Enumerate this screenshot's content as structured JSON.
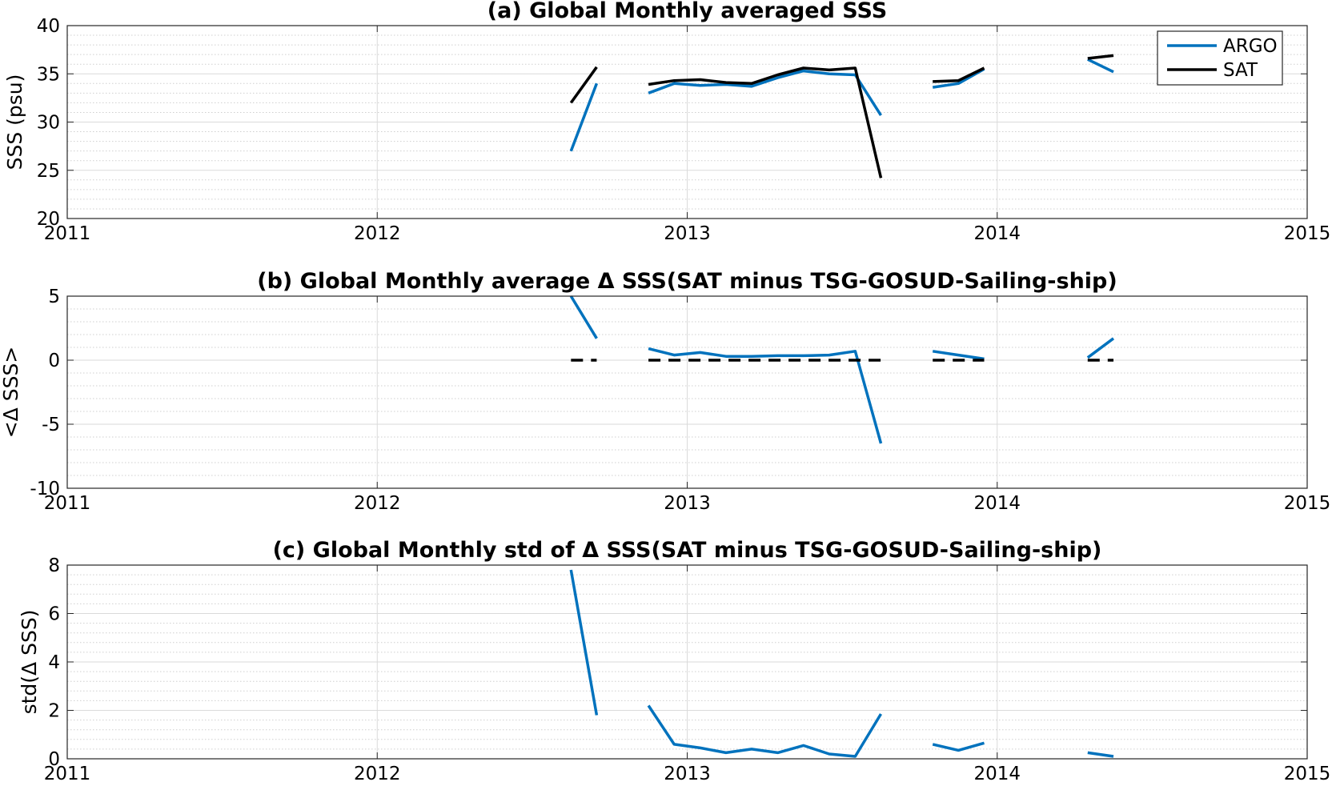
{
  "chart_data": [
    {
      "type": "line",
      "title": "(a) Global Monthly averaged SSS",
      "xlabel": "",
      "ylabel": "SSS (psu)",
      "xlim": [
        2011,
        2015
      ],
      "ylim": [
        20,
        40
      ],
      "xticks": [
        2011,
        2012,
        2013,
        2014,
        2015
      ],
      "xtick_labels": [
        "2011",
        "2012",
        "2013",
        "2014",
        "2015"
      ],
      "yticks": [
        20,
        25,
        30,
        35,
        40
      ],
      "ytick_labels": [
        "20",
        "25",
        "30",
        "35",
        "40"
      ],
      "grid": true,
      "minor_grid": true,
      "legend_position": "top-right",
      "series": [
        {
          "name": "ARGO",
          "color": "#0072BD",
          "dash": "solid",
          "points": [
            [
              2012.625,
              27.0
            ],
            [
              2012.708,
              34.0
            ],
            null,
            [
              2012.875,
              33.0
            ],
            [
              2012.958,
              34.0
            ],
            [
              2013.042,
              33.8
            ],
            [
              2013.125,
              33.9
            ],
            [
              2013.208,
              33.7
            ],
            [
              2013.292,
              34.6
            ],
            [
              2013.375,
              35.3
            ],
            [
              2013.458,
              35.0
            ],
            [
              2013.542,
              34.9
            ],
            [
              2013.625,
              30.7
            ],
            null,
            [
              2013.792,
              33.6
            ],
            [
              2013.875,
              34.0
            ],
            [
              2013.958,
              35.5
            ],
            null,
            [
              2014.292,
              36.5
            ],
            [
              2014.375,
              35.2
            ]
          ]
        },
        {
          "name": "SAT",
          "color": "#000000",
          "dash": "solid",
          "points": [
            [
              2012.625,
              32.0
            ],
            [
              2012.708,
              35.7
            ],
            null,
            [
              2012.875,
              33.9
            ],
            [
              2012.958,
              34.3
            ],
            [
              2013.042,
              34.4
            ],
            [
              2013.125,
              34.1
            ],
            [
              2013.208,
              34.0
            ],
            [
              2013.292,
              34.9
            ],
            [
              2013.375,
              35.6
            ],
            [
              2013.458,
              35.4
            ],
            [
              2013.542,
              35.6
            ],
            [
              2013.625,
              24.2
            ],
            null,
            [
              2013.792,
              34.2
            ],
            [
              2013.875,
              34.3
            ],
            [
              2013.958,
              35.6
            ],
            null,
            [
              2014.292,
              36.6
            ],
            [
              2014.375,
              36.9
            ]
          ]
        }
      ]
    },
    {
      "type": "line",
      "title": "(b) Global Monthly average Δ SSS(SAT minus TSG-GOSUD-Sailing-ship)",
      "xlabel": "",
      "ylabel": "<Δ SSS>",
      "xlim": [
        2011,
        2015
      ],
      "ylim": [
        -10,
        5
      ],
      "xticks": [
        2011,
        2012,
        2013,
        2014,
        2015
      ],
      "xtick_labels": [
        "2011",
        "2012",
        "2013",
        "2014",
        "2015"
      ],
      "yticks": [
        -10,
        -5,
        0,
        5
      ],
      "ytick_labels": [
        "-10",
        "-5",
        "0",
        "5"
      ],
      "grid": true,
      "minor_grid": true,
      "series": [
        {
          "name": "",
          "color": "#0072BD",
          "dash": "solid",
          "points": [
            [
              2012.625,
              5.0
            ],
            [
              2012.708,
              1.7
            ],
            null,
            [
              2012.875,
              0.9
            ],
            [
              2012.958,
              0.4
            ],
            [
              2013.042,
              0.6
            ],
            [
              2013.125,
              0.3
            ],
            [
              2013.208,
              0.3
            ],
            [
              2013.292,
              0.35
            ],
            [
              2013.375,
              0.35
            ],
            [
              2013.458,
              0.4
            ],
            [
              2013.542,
              0.7
            ],
            [
              2013.625,
              -6.5
            ],
            null,
            [
              2013.792,
              0.7
            ],
            [
              2013.875,
              0.4
            ],
            [
              2013.958,
              0.1
            ],
            null,
            [
              2014.292,
              0.2
            ],
            [
              2014.375,
              1.7
            ]
          ]
        },
        {
          "name": "",
          "color": "#000000",
          "dash": "dashed",
          "points": [
            [
              2012.625,
              0
            ],
            [
              2012.708,
              0
            ],
            null,
            [
              2012.875,
              0
            ],
            [
              2012.958,
              0
            ],
            [
              2013.042,
              0
            ],
            [
              2013.125,
              0
            ],
            [
              2013.208,
              0
            ],
            [
              2013.292,
              0
            ],
            [
              2013.375,
              0
            ],
            [
              2013.458,
              0
            ],
            [
              2013.542,
              0
            ],
            [
              2013.625,
              0
            ],
            null,
            [
              2013.792,
              0
            ],
            [
              2013.875,
              0
            ],
            [
              2013.958,
              0
            ],
            null,
            [
              2014.292,
              0
            ],
            [
              2014.375,
              0
            ]
          ]
        }
      ]
    },
    {
      "type": "line",
      "title": "(c) Global Monthly std of Δ SSS(SAT minus TSG-GOSUD-Sailing-ship)",
      "xlabel": "",
      "ylabel": "std(Δ SSS)",
      "xlim": [
        2011,
        2015
      ],
      "ylim": [
        0,
        8
      ],
      "xticks": [
        2011,
        2012,
        2013,
        2014,
        2015
      ],
      "xtick_labels": [
        "2011",
        "2012",
        "2013",
        "2014",
        "2015"
      ],
      "yticks": [
        0,
        2,
        4,
        6,
        8
      ],
      "ytick_labels": [
        "0",
        "2",
        "4",
        "6",
        "8"
      ],
      "grid": true,
      "minor_grid": true,
      "series": [
        {
          "name": "",
          "color": "#0072BD",
          "dash": "solid",
          "points": [
            [
              2012.625,
              7.8
            ],
            [
              2012.708,
              1.8
            ],
            null,
            [
              2012.875,
              2.2
            ],
            [
              2012.958,
              0.6
            ],
            [
              2013.042,
              0.45
            ],
            [
              2013.125,
              0.25
            ],
            [
              2013.208,
              0.4
            ],
            [
              2013.292,
              0.25
            ],
            [
              2013.375,
              0.55
            ],
            [
              2013.458,
              0.2
            ],
            [
              2013.542,
              0.1
            ],
            [
              2013.625,
              1.85
            ],
            null,
            [
              2013.792,
              0.6
            ],
            [
              2013.875,
              0.35
            ],
            [
              2013.958,
              0.65
            ],
            null,
            [
              2014.292,
              0.25
            ],
            [
              2014.375,
              0.1
            ]
          ]
        }
      ]
    }
  ]
}
